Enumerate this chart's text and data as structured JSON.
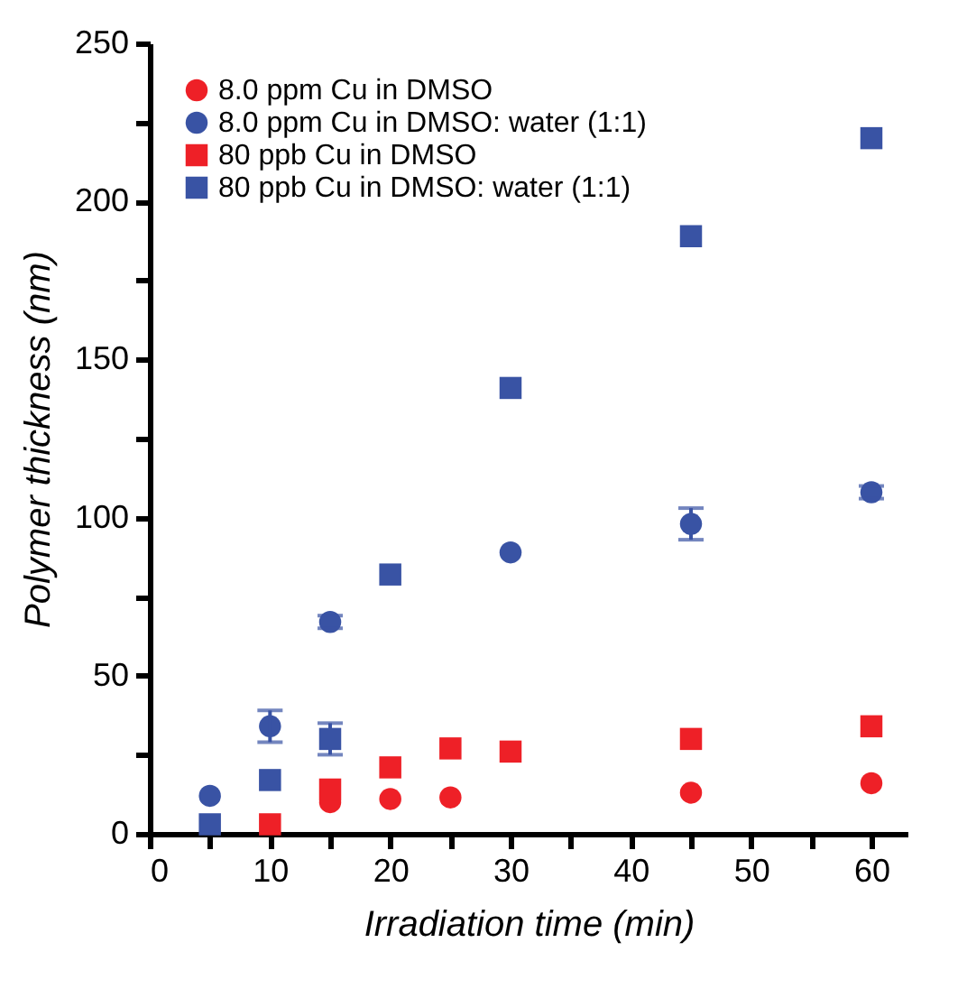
{
  "chart_data": {
    "type": "scatter",
    "xlabel": "Irradiation time (min)",
    "ylabel": "Polymer thickness (nm)",
    "x": [
      5,
      10,
      15,
      20,
      25,
      30,
      45,
      60
    ],
    "xlim": [
      0,
      63
    ],
    "ylim": [
      0,
      250
    ],
    "xticks": [
      0,
      {
        "value": 5,
        "label": null
      },
      10,
      {
        "value": 15,
        "label": null
      },
      20,
      {
        "value": 25,
        "label": null
      },
      30,
      {
        "value": 35,
        "label": null
      },
      40,
      {
        "value": 45,
        "label": null
      },
      50,
      {
        "value": 55,
        "label": null
      },
      60
    ],
    "yticks": [
      0,
      {
        "value": 25,
        "label": null
      },
      50,
      {
        "value": 75,
        "label": null
      },
      100,
      {
        "value": 125,
        "label": null
      },
      150,
      {
        "value": 175,
        "label": null
      },
      200,
      {
        "value": 225,
        "label": null
      },
      250
    ],
    "legend": "top left",
    "grid": false,
    "series": [
      {
        "name": "8.0 ppm Cu in DMSO",
        "color": "#ee2027",
        "marker": "circle",
        "values": [
          null,
          null,
          10,
          11,
          11.5,
          null,
          13,
          16
        ]
      },
      {
        "name": "8.0 ppm Cu in DMSO: water (1:1)",
        "color": "#3953a4",
        "marker": "circle",
        "values": [
          12,
          34,
          67,
          null,
          null,
          89,
          98,
          108
        ],
        "errors": [
          null,
          5,
          2,
          null,
          null,
          null,
          5,
          2
        ]
      },
      {
        "name": "80 ppb Cu in DMSO",
        "color": "#ee2027",
        "marker": "square",
        "values": [
          null,
          3,
          14,
          21,
          27,
          26,
          30,
          34
        ]
      },
      {
        "name": "80 ppb Cu in DMSO: water (1:1)",
        "color": "#3953a4",
        "marker": "square",
        "values": [
          3,
          17,
          30,
          82,
          null,
          141,
          189,
          220
        ],
        "errors": [
          null,
          null,
          5,
          null,
          null,
          null,
          null,
          null
        ]
      }
    ]
  }
}
